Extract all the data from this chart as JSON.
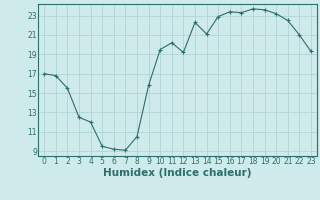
{
  "xlabel": "Humidex (Indice chaleur)",
  "x": [
    0,
    1,
    2,
    3,
    4,
    5,
    6,
    7,
    8,
    9,
    10,
    11,
    12,
    13,
    14,
    15,
    16,
    17,
    18,
    19,
    20,
    21,
    22,
    23
  ],
  "y": [
    17,
    16.8,
    15.5,
    12.5,
    12,
    9.5,
    9.2,
    9.1,
    10.5,
    15.8,
    19.5,
    20.2,
    19.2,
    22.3,
    21.1,
    22.9,
    23.4,
    23.3,
    23.7,
    23.6,
    23.2,
    22.5,
    21.0,
    19.3
  ],
  "ylim": [
    8.5,
    24.2
  ],
  "xlim": [
    -0.5,
    23.5
  ],
  "yticks": [
    9,
    11,
    13,
    15,
    17,
    19,
    21,
    23
  ],
  "xticks": [
    0,
    1,
    2,
    3,
    4,
    5,
    6,
    7,
    8,
    9,
    10,
    11,
    12,
    13,
    14,
    15,
    16,
    17,
    18,
    19,
    20,
    21,
    22,
    23
  ],
  "line_color": "#2d6e6e",
  "marker": "+",
  "marker_size": 3,
  "marker_linewidth": 0.8,
  "bg_color": "#ceeaea",
  "grid_color": "#b0d4d4",
  "tick_label_fontsize": 5.5,
  "xlabel_fontsize": 7.5
}
